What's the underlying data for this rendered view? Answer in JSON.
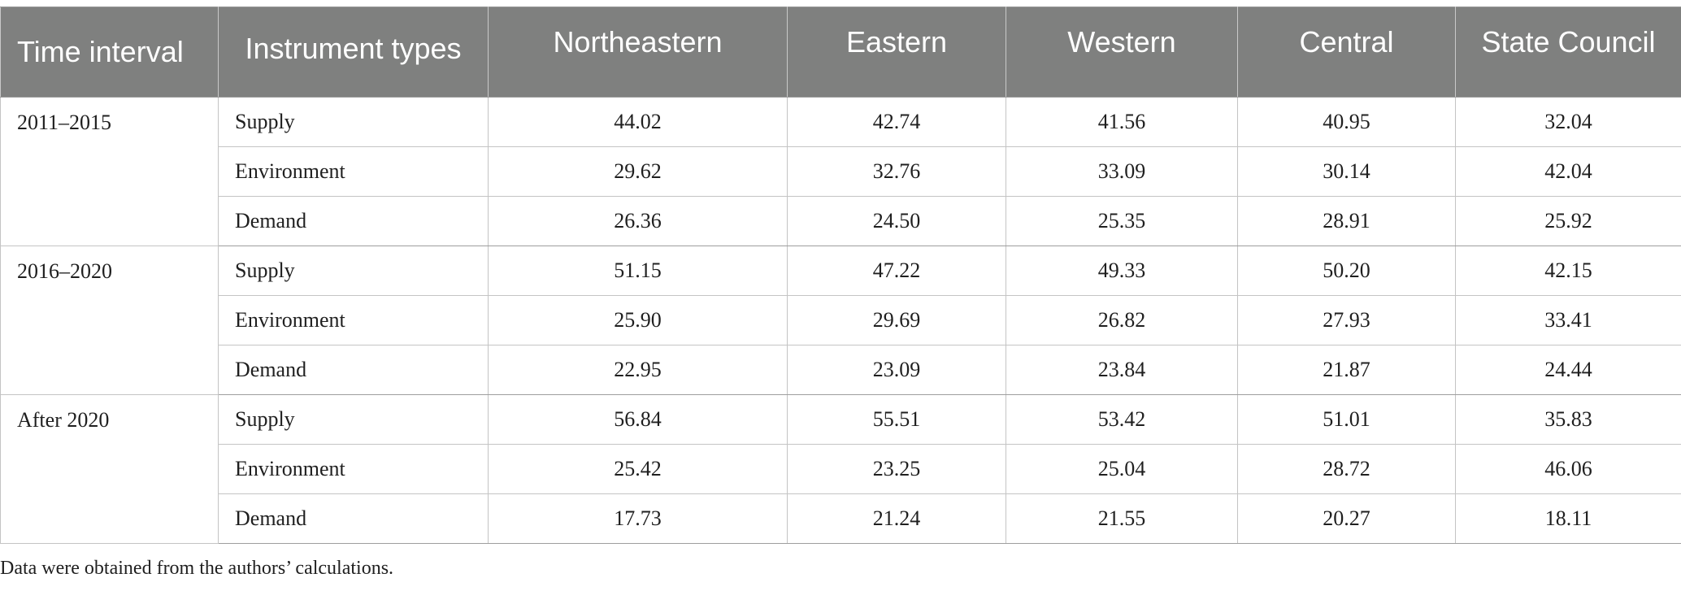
{
  "table": {
    "headers": [
      "Time interval",
      "Instrument types",
      "Northeastern",
      "Eastern",
      "Western",
      "Central",
      "State Council"
    ],
    "groups": [
      {
        "interval": "2011–2015",
        "rows": [
          {
            "type": "Supply",
            "values": [
              "44.02",
              "42.74",
              "41.56",
              "40.95",
              "32.04"
            ]
          },
          {
            "type": "Environment",
            "values": [
              "29.62",
              "32.76",
              "33.09",
              "30.14",
              "42.04"
            ]
          },
          {
            "type": "Demand",
            "values": [
              "26.36",
              "24.50",
              "25.35",
              "28.91",
              "25.92"
            ]
          }
        ]
      },
      {
        "interval": "2016–2020",
        "rows": [
          {
            "type": "Supply",
            "values": [
              "51.15",
              "47.22",
              "49.33",
              "50.20",
              "42.15"
            ]
          },
          {
            "type": "Environment",
            "values": [
              "25.90",
              "29.69",
              "26.82",
              "27.93",
              "33.41"
            ]
          },
          {
            "type": "Demand",
            "values": [
              "22.95",
              "23.09",
              "23.84",
              "21.87",
              "24.44"
            ]
          }
        ]
      },
      {
        "interval": "After 2020",
        "rows": [
          {
            "type": "Supply",
            "values": [
              "56.84",
              "55.51",
              "53.42",
              "51.01",
              "35.83"
            ]
          },
          {
            "type": "Environment",
            "values": [
              "25.42",
              "23.25",
              "25.04",
              "28.72",
              "46.06"
            ]
          },
          {
            "type": "Demand",
            "values": [
              "17.73",
              "21.24",
              "21.55",
              "20.27",
              "18.11"
            ]
          }
        ]
      }
    ]
  },
  "footnote": "Data were obtained from the authors’ calculations.",
  "colors": {
    "header_bg": "#7f807f",
    "header_text": "#ffffff",
    "grid": "#c4c4c4"
  }
}
